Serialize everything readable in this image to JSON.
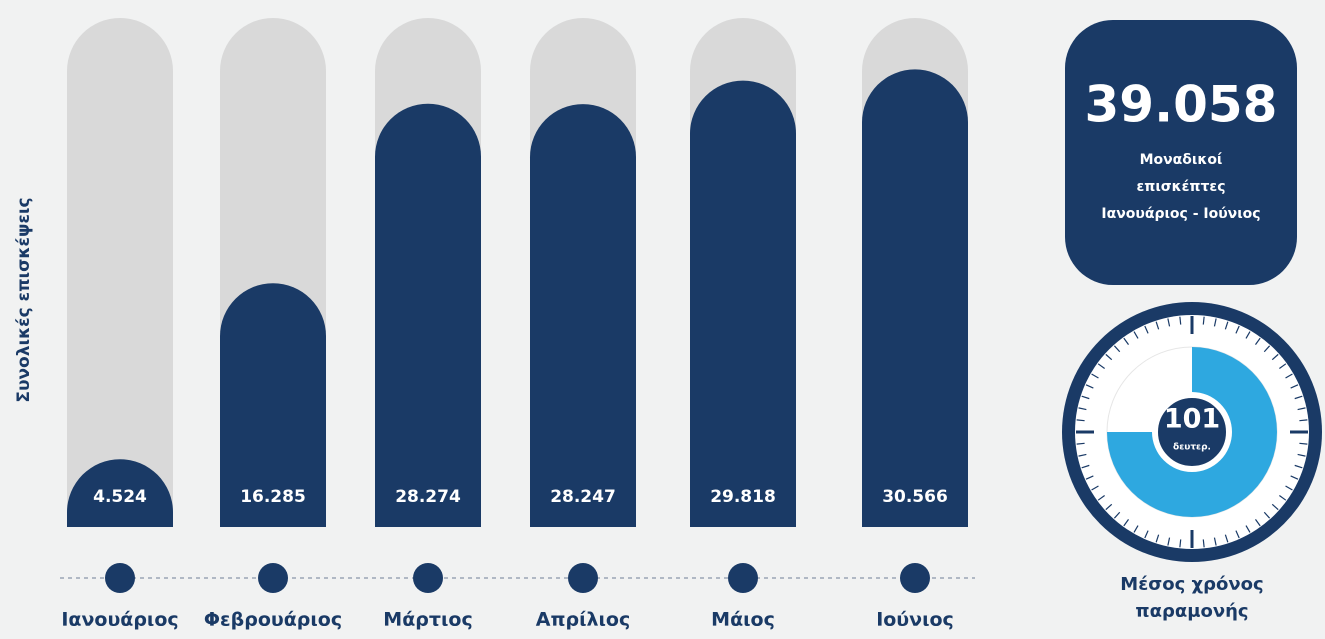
{
  "chart_data": {
    "type": "bar",
    "y_axis_label": "Συνολικές επισκέψεις",
    "categories": [
      "Ιανουάριος",
      "Φεβρουάριος",
      "Μάρτιος",
      "Απρίλιος",
      "Μάιος",
      "Ιούνιος"
    ],
    "values": [
      4524,
      16285,
      28274,
      28247,
      29818,
      30566
    ],
    "value_labels": [
      "4.524",
      "16.285",
      "28.274",
      "28.247",
      "29.818",
      "30.566"
    ],
    "color": "#1a3a66",
    "track_color": "#d9d9d9",
    "ylim": [
      0,
      34000
    ]
  },
  "stats": {
    "unique_visitors": {
      "value": "39.058",
      "lines": [
        "Μοναδικοί",
        "επισκέπτες",
        "Ιανουάριος - Ιούνιος"
      ]
    },
    "avg_time": {
      "value": "101",
      "unit": "δευτερ.",
      "lines": [
        "Μέσος χρόνος",
        "παραμονής"
      ]
    }
  }
}
